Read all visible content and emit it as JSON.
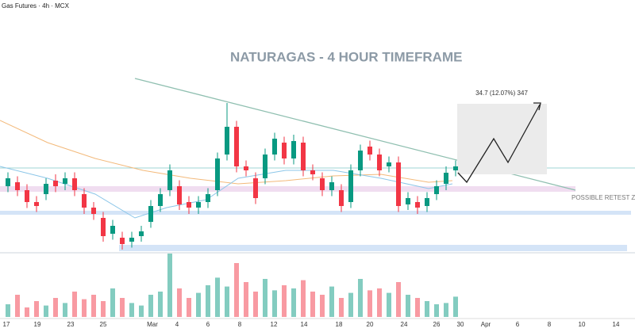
{
  "chart_data": {
    "type": "candlestick",
    "header": "Gas Futures · 4h · MCX",
    "title": "NATURAGAS - 4 HOUR TIMEFRAME",
    "measure_label": "34.7 (12.07%) 347",
    "zone_label": "POSSIBLE RETEST ZONE",
    "x_labels": [
      "17",
      "19",
      "23",
      "25",
      "Mar",
      "4",
      "6",
      "8",
      "12",
      "14",
      "18",
      "20",
      "24",
      "26",
      "30",
      "Apr",
      "6",
      "8",
      "10",
      "14"
    ],
    "up_color": "#089981",
    "down_color": "#f23645",
    "ylim": [
      272,
      400
    ],
    "open": [
      306,
      308,
      304,
      298,
      302,
      308.8,
      307.2,
      310,
      302,
      295.2,
      290,
      282,
      280,
      278,
      280.8,
      288,
      296,
      304,
      306,
      298,
      295.2,
      298,
      304,
      322,
      336,
      316,
      310,
      310,
      322,
      328,
      320,
      328,
      314,
      310,
      304,
      304,
      298,
      314,
      326,
      322,
      316,
      318,
      296.8,
      298,
      296,
      302,
      307.2,
      314
    ],
    "high": [
      313,
      311,
      307,
      301,
      310,
      312,
      313,
      313,
      305,
      298,
      293,
      289,
      283,
      283,
      286,
      299,
      305,
      317,
      309,
      301,
      301,
      305,
      323,
      348,
      339,
      319,
      313,
      325,
      333,
      331,
      332,
      331,
      317,
      313,
      311,
      307,
      317,
      327,
      329,
      325,
      321,
      321,
      303,
      301,
      303,
      309,
      316,
      319
    ],
    "low": [
      303,
      301,
      295,
      293,
      299,
      303,
      304,
      301,
      292,
      289,
      278,
      279,
      274,
      275,
      278,
      285,
      293,
      301,
      294,
      292,
      292,
      295,
      301,
      319,
      313,
      311,
      297,
      307,
      319,
      317,
      317,
      311,
      309,
      301,
      301,
      293,
      295,
      311,
      319,
      311,
      313,
      293,
      294,
      292,
      293,
      299,
      304,
      311
    ],
    "close": [
      310,
      304,
      298,
      296,
      307.2,
      306,
      310,
      304,
      295.2,
      292,
      280.8,
      286,
      276.8,
      280,
      283.2,
      296,
      302,
      314,
      296.8,
      295.2,
      298,
      302,
      320,
      336,
      316,
      314,
      300,
      322,
      330,
      320,
      328.8,
      314,
      312,
      304,
      308,
      296,
      314,
      324,
      322,
      314,
      318,
      296,
      300,
      295.2,
      300,
      306,
      312.8,
      316
    ],
    "volume": [
      20,
      35,
      15,
      25,
      18,
      30,
      22,
      40,
      28,
      35,
      25,
      45,
      30,
      22,
      18,
      35,
      40,
      100,
      45,
      30,
      38,
      50,
      62,
      48,
      85,
      55,
      40,
      60,
      42,
      50,
      45,
      58,
      40,
      35,
      48,
      30,
      38,
      60,
      42,
      45,
      38,
      55,
      35,
      30,
      25,
      20,
      22,
      32
    ],
    "vlim": [
      0,
      100
    ]
  }
}
